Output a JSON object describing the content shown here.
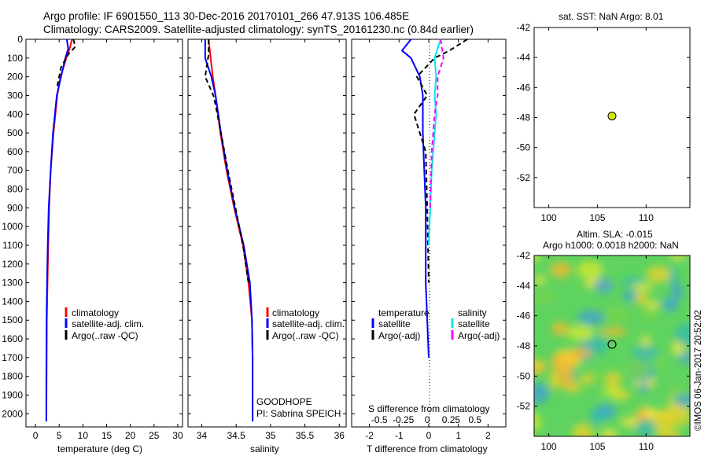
{
  "header": {
    "title_line1": "Argo profile: IF 6901550_113 30-Dec-2016 20170101_266 47.913S 106.485E",
    "title_line2": "Climatology: CARS2009. Satellite-adjusted climatology: synTS_20161230.nc (0.84d earlier)"
  },
  "side": {
    "sst_title": "sat. SST: NaN Argo: 8.01",
    "sla_title1": "Altim. SLA: -0.015",
    "sla_title2": "Argo h1000: 0.0018 h2000: NaN",
    "credit": "©IMOS 06-Jan-2017 20:52:02",
    "float_marker_color": "#d4e600"
  },
  "panels": {
    "temp": {
      "xlabel": "temperature (deg C)",
      "legend": [
        "climatology",
        "satellite-adj. clim.",
        "Argo(..raw -QC)"
      ]
    },
    "sal": {
      "xlabel": "salinity",
      "legend": [
        "climatology",
        "satellite-adj. clim.",
        "Argo(..raw -QC)"
      ],
      "note1": "GOODHOPE",
      "note2": "PI: Sabrina SPEICH"
    },
    "diff": {
      "xlabel": "T difference from climatology",
      "xlabel_top": "S difference from climatology",
      "legend_temp_title": "temperature",
      "legend_sal_title": "salinity",
      "legend_items": [
        "satellite",
        "Argo(-adj)",
        "satellite",
        "Argo(-adj)"
      ]
    }
  },
  "colors": {
    "climatology": "#ff0000",
    "satellite_temp": "#0000ff",
    "argo": "#000000",
    "satellite_sal": "#00e5ee",
    "argo_sal": "#ff00ff"
  },
  "chart_data": [
    {
      "type": "line",
      "name": "temperature profile",
      "ylabel": "",
      "xlabel": "temperature (deg C)",
      "xlim": [
        -2,
        31
      ],
      "ylim": [
        2070,
        0
      ],
      "xticks": [
        0,
        5,
        10,
        15,
        20,
        25,
        30
      ],
      "yticks": [
        0,
        100,
        200,
        300,
        400,
        500,
        600,
        700,
        800,
        900,
        1000,
        1100,
        1200,
        1300,
        1400,
        1500,
        1600,
        1700,
        1800,
        1900,
        2000
      ],
      "series": [
        {
          "name": "climatology",
          "color": "#ff0000",
          "x": [
            7.7,
            7.2,
            6.5,
            5.3,
            4.6,
            3.8,
            3.2,
            2.9,
            2.7,
            2.55,
            2.4,
            2.35,
            2.3
          ],
          "y": [
            0,
            50,
            100,
            200,
            300,
            500,
            700,
            900,
            1100,
            1300,
            1500,
            1800,
            2040
          ]
        },
        {
          "name": "satellite-adj. clim.",
          "color": "#0000ff",
          "x": [
            6.6,
            6.9,
            6.3,
            5.4,
            4.5,
            3.7,
            3.2,
            2.8,
            2.6,
            2.45,
            2.35,
            2.3,
            2.3
          ],
          "y": [
            0,
            50,
            100,
            200,
            300,
            500,
            700,
            900,
            1100,
            1300,
            1500,
            1800,
            2040
          ]
        },
        {
          "name": "Argo(..raw -QC)",
          "color": "#000000",
          "x": [
            8.0,
            8.4,
            6.9,
            5.4,
            4.6
          ],
          "y": [
            0,
            40,
            80,
            150,
            250
          ]
        }
      ]
    },
    {
      "type": "line",
      "name": "salinity profile",
      "xlabel": "salinity",
      "xlim": [
        33.8,
        36.1
      ],
      "ylim": [
        2070,
        0
      ],
      "xticks": [
        34,
        34.5,
        35,
        35.5,
        36
      ],
      "series": [
        {
          "name": "climatology",
          "color": "#ff0000",
          "x": [
            34.1,
            34.13,
            34.16,
            34.2,
            34.27,
            34.36,
            34.47,
            34.6,
            34.68,
            34.73,
            34.74,
            34.74,
            34.74
          ],
          "y": [
            0,
            100,
            200,
            300,
            500,
            700,
            900,
            1100,
            1300,
            1500,
            1700,
            1900,
            2040
          ]
        },
        {
          "name": "satellite-adj. clim.",
          "color": "#0000ff",
          "x": [
            34.05,
            34.05,
            34.14,
            34.2,
            34.28,
            34.37,
            34.48,
            34.61,
            34.7,
            34.73,
            34.74,
            34.74,
            34.74
          ],
          "y": [
            0,
            100,
            200,
            300,
            500,
            700,
            900,
            1100,
            1300,
            1500,
            1700,
            1900,
            2040
          ]
        },
        {
          "name": "Argo(..raw -QC)",
          "color": "#000000",
          "x": [
            34.1,
            34.1,
            34.05,
            34.17,
            34.2,
            34.28,
            34.38,
            34.49,
            34.6,
            34.68
          ],
          "y": [
            0,
            80,
            200,
            300,
            350,
            500,
            700,
            900,
            1100,
            1300
          ]
        }
      ]
    },
    {
      "type": "line",
      "name": "difference from climatology",
      "xlabel": "T difference from climatology",
      "xlabel_top": "S difference from climatology",
      "xlim": [
        -2.6,
        2.6
      ],
      "ylim": [
        2070,
        0
      ],
      "xticks": [
        -2,
        -1,
        0,
        1,
        2
      ],
      "xticks_top": [
        -0.5,
        -0.25,
        0,
        0.25,
        0.5
      ],
      "series": [
        {
          "name": "satellite (temperature)",
          "color": "#0000ff",
          "x": [
            -0.6,
            -0.9,
            -0.6,
            -0.3,
            -0.2,
            -0.2,
            -0.15,
            -0.1,
            -0.1,
            -0.1,
            -0.05,
            0
          ],
          "y": [
            0,
            60,
            100,
            200,
            300,
            500,
            700,
            900,
            1100,
            1300,
            1500,
            1700
          ]
        },
        {
          "name": "Argo(-adj) (temperature)",
          "color": "#000000",
          "x": [
            1.3,
            0.7,
            0.2,
            -0.4,
            -0.05,
            -0.5,
            -0.1,
            -0.05,
            0.0
          ],
          "y": [
            0,
            60,
            100,
            200,
            300,
            400,
            600,
            900,
            1300
          ]
        },
        {
          "name": "satellite (salinity)",
          "color": "#00e5ee",
          "x": [
            0.4,
            0.2,
            0.25,
            0.2,
            0.25,
            0.2,
            0.1,
            0.05,
            0
          ],
          "y": [
            0,
            100,
            200,
            300,
            400,
            500,
            700,
            900,
            1100
          ]
        },
        {
          "name": "Argo(-adj) (salinity)",
          "color": "#ff00ff",
          "x": [
            0.4,
            0.5,
            0.3,
            0.3,
            0.2,
            0.1,
            0.05
          ],
          "y": [
            0,
            100,
            200,
            300,
            400,
            600,
            900
          ]
        }
      ]
    },
    {
      "type": "scatter",
      "name": "sat. SST map",
      "xlim": [
        98.5,
        114.5
      ],
      "ylim": [
        -54,
        -42
      ],
      "xticks": [
        100,
        105,
        110
      ],
      "yticks": [
        -42,
        -44,
        -46,
        -48,
        -50,
        -52
      ],
      "points": [
        {
          "x": 106.5,
          "y": -47.9
        }
      ]
    },
    {
      "type": "heatmap",
      "name": "altimetry SLA map",
      "xlim": [
        98.5,
        114.5
      ],
      "ylim": [
        -54,
        -42
      ],
      "xticks": [
        100,
        105,
        110
      ],
      "yticks": [
        -42,
        -44,
        -46,
        -48,
        -50,
        -52
      ],
      "points": [
        {
          "x": 106.5,
          "y": -47.9
        }
      ]
    }
  ]
}
